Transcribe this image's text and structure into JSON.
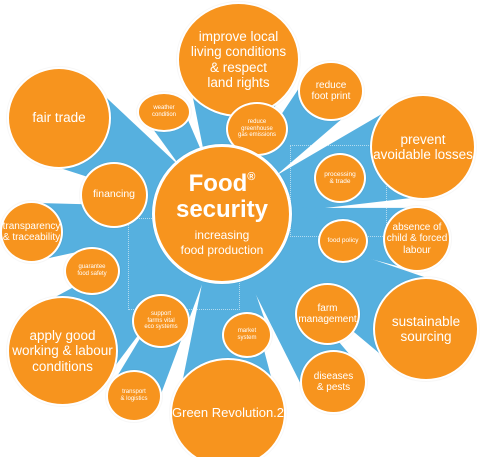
{
  "center": {
    "title_line1": "Food",
    "registered_mark": "®",
    "title_line2": "security",
    "subtitle": "increasing\nfood production"
  },
  "bubbles": {
    "improve_local": "improve local\nliving conditions\n& respect\nland rights",
    "reduce_foot_print": "reduce\nfoot print",
    "fair_trade": "fair trade",
    "weather_condition": "weather\ncondition",
    "reduce_greenhouse": "reduce\ngreenhouse\ngas emissions",
    "prevent_losses": "prevent\navoidable losses",
    "processing_trade": "processing\n& trade",
    "financing": "financing",
    "transparency": "transparency\n& traceability",
    "absence_labour": "absence of\nchild & forced\nlabour",
    "food_policy": "food policy",
    "guarantee_food_safety": "guarantee\nfood safety",
    "farm_management": "farm\nmanagement",
    "sustainable_sourcing": "sustainable\nsourcing",
    "support_ecosystems": "support\nfarms vital\neco systems",
    "market_system": "market\nsystem",
    "apply_good_conditions": "apply good\nworking & labour\nconditions",
    "diseases_pests": "diseases\n& pests",
    "transport_logistics": "transport\n& logistics",
    "green_revolution": "Green Revolution.2"
  },
  "colors": {
    "bubble": "#f7941e",
    "ray": "#56b0df",
    "text": "#ffffff",
    "background": "#ffffff"
  }
}
